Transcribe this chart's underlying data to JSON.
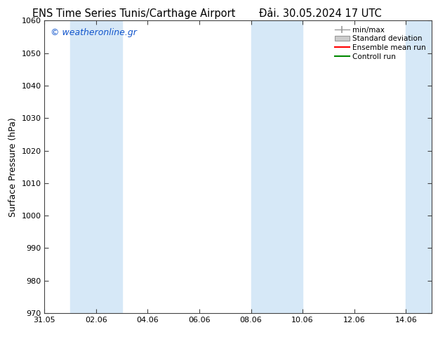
{
  "title_left": "ENS Time Series Tunis/Carthage Airport",
  "title_right": "Đải. 30.05.2024 17 UTC",
  "ylabel": "Surface Pressure (hPa)",
  "ylim": [
    970,
    1060
  ],
  "yticks": [
    970,
    980,
    990,
    1000,
    1010,
    1020,
    1030,
    1040,
    1050,
    1060
  ],
  "xtick_labels": [
    "31.05",
    "02.06",
    "04.06",
    "06.06",
    "08.06",
    "10.06",
    "12.06",
    "14.06"
  ],
  "xtick_positions": [
    0,
    2,
    4,
    6,
    8,
    10,
    12,
    14
  ],
  "x_min": 0,
  "x_max": 15,
  "shade_bands": [
    {
      "x_start": 1,
      "x_end": 3,
      "color": "#d6e8f7"
    },
    {
      "x_start": 8,
      "x_end": 10,
      "color": "#d6e8f7"
    },
    {
      "x_start": 14,
      "x_end": 15,
      "color": "#d6e8f7"
    }
  ],
  "watermark": "© weatheronline.gr",
  "watermark_color": "#1155cc",
  "background_color": "#ffffff",
  "plot_bg_color": "#ffffff",
  "legend_entries": [
    {
      "label": "min/max"
    },
    {
      "label": "Standard deviation"
    },
    {
      "label": "Ensemble mean run",
      "color": "#ff0000"
    },
    {
      "label": "Controll run",
      "color": "#008800"
    }
  ],
  "title_fontsize": 10.5,
  "ylabel_fontsize": 9,
  "tick_fontsize": 8,
  "watermark_fontsize": 9,
  "legend_fontsize": 7.5
}
